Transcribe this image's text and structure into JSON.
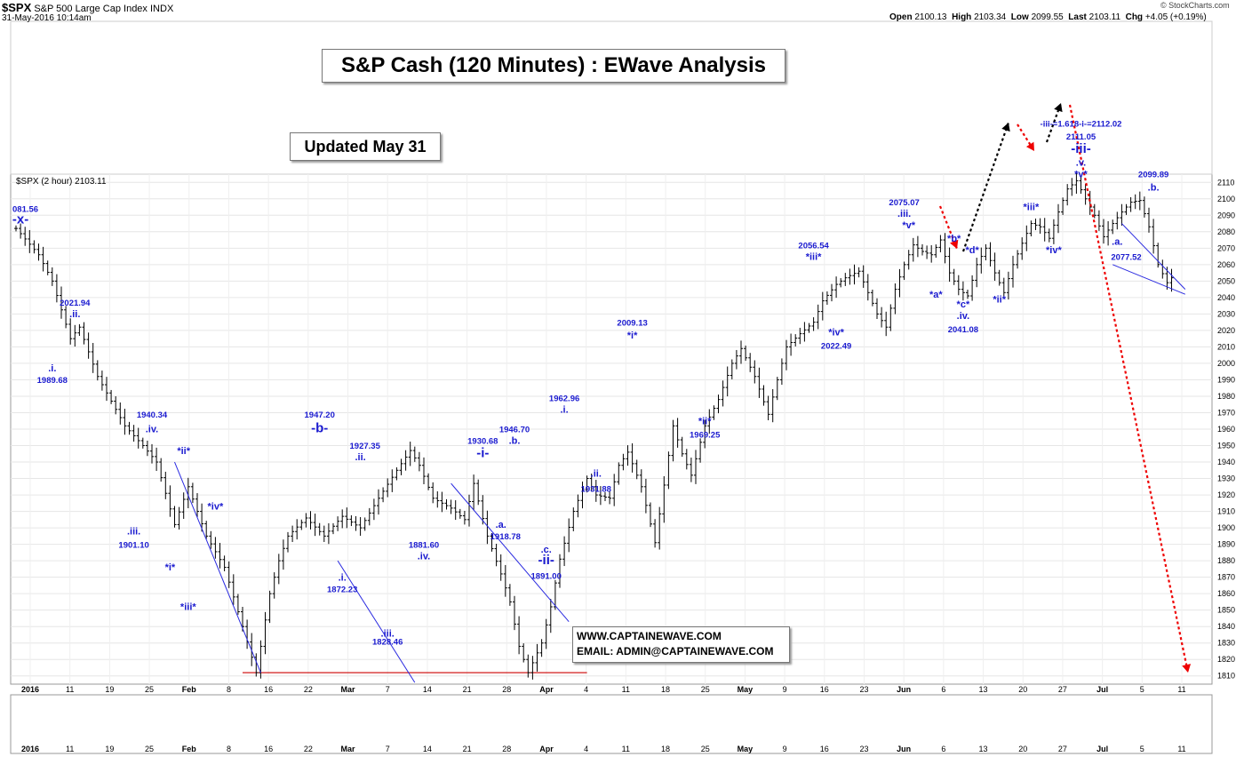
{
  "header": {
    "symbol": "$SPX",
    "name": "S&P 500 Large Cap Index",
    "exchange": "INDX",
    "datetime": "31-May-2016 10:14am",
    "open_label": "Open",
    "open": "2100.13",
    "high_label": "High",
    "high": "2103.34",
    "low_label": "Low",
    "low": "2099.55",
    "last_label": "Last",
    "last": "2103.11",
    "chg_label": "Chg",
    "chg": "+4.05 (+0.19%)",
    "source": "© StockCharts.com"
  },
  "title_box": "S&P Cash (120 Minutes) : EWave Analysis",
  "updated_box": "Updated May 31",
  "contact": {
    "website": "WWW.CAPTAINEWAVE.COM",
    "email": "EMAIL: ADMIN@CAPTAINEWAVE.COM"
  },
  "legend_label": "$SPX (2 hour) 2103.11",
  "chart_data": {
    "type": "line",
    "title": "S&P Cash (120 Minutes) : EWave Analysis",
    "ylim": [
      1805,
      2115
    ],
    "y_ticks": [
      1810,
      1820,
      1830,
      1840,
      1850,
      1860,
      1870,
      1880,
      1890,
      1900,
      1910,
      1920,
      1930,
      1940,
      1950,
      1960,
      1970,
      1980,
      1990,
      2000,
      2010,
      2020,
      2030,
      2040,
      2050,
      2060,
      2070,
      2080,
      2090,
      2100,
      2110
    ],
    "x_tick_labels": [
      "2016",
      "11",
      "19",
      "25",
      "Feb",
      "8",
      "16",
      "22",
      "Mar",
      "7",
      "14",
      "21",
      "28",
      "Apr",
      "4",
      "11",
      "18",
      "25",
      "May",
      "9",
      "16",
      "23",
      "Jun",
      "6",
      "13",
      "20",
      "27",
      "Jul",
      "5",
      "11"
    ],
    "bar_count": 256,
    "price_path": [
      [
        0,
        2082
      ],
      [
        5,
        2066
      ],
      [
        8,
        2050
      ],
      [
        12,
        2015
      ],
      [
        14,
        2022
      ],
      [
        18,
        1992
      ],
      [
        24,
        1962
      ],
      [
        28,
        1950
      ],
      [
        31,
        1940
      ],
      [
        35,
        1902
      ],
      [
        38,
        1925
      ],
      [
        42,
        1895
      ],
      [
        46,
        1876
      ],
      [
        50,
        1840
      ],
      [
        53,
        1812
      ],
      [
        56,
        1860
      ],
      [
        58,
        1880
      ],
      [
        60,
        1895
      ],
      [
        64,
        1906
      ],
      [
        68,
        1895
      ],
      [
        72,
        1907
      ],
      [
        76,
        1900
      ],
      [
        80,
        1918
      ],
      [
        84,
        1935
      ],
      [
        87,
        1947
      ],
      [
        89,
        1938
      ],
      [
        92,
        1918
      ],
      [
        96,
        1912
      ],
      [
        99,
        1905
      ],
      [
        101,
        1927
      ],
      [
        104,
        1895
      ],
      [
        107,
        1872
      ],
      [
        109,
        1855
      ],
      [
        111,
        1828
      ],
      [
        113,
        1812
      ],
      [
        116,
        1830
      ],
      [
        118,
        1852
      ],
      [
        120,
        1881
      ],
      [
        123,
        1910
      ],
      [
        126,
        1930
      ],
      [
        128,
        1920
      ],
      [
        131,
        1918
      ],
      [
        133,
        1938
      ],
      [
        135,
        1946
      ],
      [
        138,
        1925
      ],
      [
        141,
        1891
      ],
      [
        143,
        1926
      ],
      [
        145,
        1962
      ],
      [
        147,
        1945
      ],
      [
        149,
        1932
      ],
      [
        152,
        1962
      ],
      [
        155,
        1978
      ],
      [
        158,
        2000
      ],
      [
        160,
        2009
      ],
      [
        163,
        1992
      ],
      [
        166,
        1969
      ],
      [
        168,
        1990
      ],
      [
        170,
        2010
      ],
      [
        173,
        2018
      ],
      [
        176,
        2025
      ],
      [
        178,
        2038
      ],
      [
        181,
        2048
      ],
      [
        183,
        2052
      ],
      [
        186,
        2056
      ],
      [
        188,
        2043
      ],
      [
        190,
        2030
      ],
      [
        192,
        2022
      ],
      [
        194,
        2045
      ],
      [
        196,
        2060
      ],
      [
        198,
        2072
      ],
      [
        200,
        2068
      ],
      [
        202,
        2066
      ],
      [
        204,
        2075
      ],
      [
        206,
        2055
      ],
      [
        208,
        2045
      ],
      [
        210,
        2041
      ],
      [
        212,
        2060
      ],
      [
        214,
        2070
      ],
      [
        216,
        2055
      ],
      [
        218,
        2043
      ],
      [
        220,
        2060
      ],
      [
        222,
        2073
      ],
      [
        224,
        2085
      ],
      [
        226,
        2083
      ],
      [
        228,
        2076
      ],
      [
        230,
        2092
      ],
      [
        232,
        2106
      ],
      [
        234,
        2111
      ],
      [
        236,
        2100
      ],
      [
        238,
        2090
      ],
      [
        240,
        2077
      ],
      [
        242,
        2085
      ],
      [
        244,
        2092
      ],
      [
        246,
        2098
      ],
      [
        248,
        2099
      ],
      [
        250,
        2083
      ],
      [
        252,
        2060
      ],
      [
        254,
        2049
      ],
      [
        256,
        2055
      ]
    ],
    "series": [
      {
        "name": "$SPX (2 hour)",
        "values": "OHLC bars — see price_path"
      }
    ],
    "annotations": [
      {
        "label": "081.56",
        "bar": 0,
        "y": 2092,
        "kind": "price"
      },
      {
        "label": "-x-",
        "bar": 1,
        "y": 2085,
        "kind": "wave2"
      },
      {
        "label": "2021.94",
        "bar": 13,
        "y": 2035,
        "kind": "price"
      },
      {
        "label": ".ii.",
        "bar": 13,
        "y": 2028,
        "kind": "wave"
      },
      {
        "label": ".i.",
        "bar": 8,
        "y": 1995,
        "kind": "wave"
      },
      {
        "label": "1989.68",
        "bar": 8,
        "y": 1988,
        "kind": "price"
      },
      {
        "label": "1940.34",
        "bar": 30,
        "y": 1967,
        "kind": "price"
      },
      {
        "label": ".iv.",
        "bar": 30,
        "y": 1958,
        "kind": "wave"
      },
      {
        "label": "*ii*",
        "bar": 37,
        "y": 1945,
        "kind": "wave"
      },
      {
        "label": "*iv*",
        "bar": 44,
        "y": 1911,
        "kind": "wave"
      },
      {
        "label": ".iii.",
        "bar": 26,
        "y": 1896,
        "kind": "wave"
      },
      {
        "label": "1901.10",
        "bar": 26,
        "y": 1888,
        "kind": "price"
      },
      {
        "label": "*i*",
        "bar": 34,
        "y": 1874,
        "kind": "wave"
      },
      {
        "label": "*iii*",
        "bar": 38,
        "y": 1850,
        "kind": "wave"
      },
      {
        "label": "1947.20",
        "bar": 67,
        "y": 1967,
        "kind": "price"
      },
      {
        "label": "-b-",
        "bar": 67,
        "y": 1958,
        "kind": "wave2"
      },
      {
        "label": "1927.35",
        "bar": 77,
        "y": 1948,
        "kind": "price"
      },
      {
        "label": ".ii.",
        "bar": 76,
        "y": 1941,
        "kind": "wave"
      },
      {
        "label": "1881.60",
        "bar": 90,
        "y": 1888,
        "kind": "price"
      },
      {
        "label": ".iv.",
        "bar": 90,
        "y": 1881,
        "kind": "wave"
      },
      {
        "label": ".i.",
        "bar": 72,
        "y": 1868,
        "kind": "wave"
      },
      {
        "label": "1872.23",
        "bar": 72,
        "y": 1861,
        "kind": "price"
      },
      {
        "label": ".iii.",
        "bar": 82,
        "y": 1834,
        "kind": "wave"
      },
      {
        "label": "1828.46",
        "bar": 82,
        "y": 1829,
        "kind": "price"
      },
      {
        "label": "1930.68",
        "bar": 103,
        "y": 1951,
        "kind": "price"
      },
      {
        "label": "-i-",
        "bar": 103,
        "y": 1943,
        "kind": "wave2"
      },
      {
        "label": "1946.70",
        "bar": 110,
        "y": 1958,
        "kind": "price"
      },
      {
        "label": ".b.",
        "bar": 110,
        "y": 1951,
        "kind": "wave"
      },
      {
        "label": ".a.",
        "bar": 107,
        "y": 1900,
        "kind": "wave"
      },
      {
        "label": "1918.78",
        "bar": 108,
        "y": 1893,
        "kind": "price"
      },
      {
        "label": ".c.",
        "bar": 117,
        "y": 1885,
        "kind": "wave"
      },
      {
        "label": "-ii-",
        "bar": 117,
        "y": 1878,
        "kind": "wave2"
      },
      {
        "label": "1891.00",
        "bar": 117,
        "y": 1869,
        "kind": "price"
      },
      {
        "label": "1962.96",
        "bar": 121,
        "y": 1977,
        "kind": "price"
      },
      {
        "label": ".i.",
        "bar": 121,
        "y": 1970,
        "kind": "wave"
      },
      {
        "label": ".ii.",
        "bar": 128,
        "y": 1931,
        "kind": "wave"
      },
      {
        "label": "1931.88",
        "bar": 128,
        "y": 1922,
        "kind": "price"
      },
      {
        "label": "2009.13",
        "bar": 136,
        "y": 2023,
        "kind": "price"
      },
      {
        "label": "*i*",
        "bar": 136,
        "y": 2015,
        "kind": "wave"
      },
      {
        "label": "*ii*",
        "bar": 152,
        "y": 1963,
        "kind": "wave"
      },
      {
        "label": "1969.25",
        "bar": 152,
        "y": 1955,
        "kind": "price"
      },
      {
        "label": "2056.54",
        "bar": 176,
        "y": 2070,
        "kind": "price"
      },
      {
        "label": "*iii*",
        "bar": 176,
        "y": 2063,
        "kind": "wave"
      },
      {
        "label": "*iv*",
        "bar": 181,
        "y": 2017,
        "kind": "wave"
      },
      {
        "label": "2022.49",
        "bar": 181,
        "y": 2009,
        "kind": "price"
      },
      {
        "label": "2075.07",
        "bar": 196,
        "y": 2096,
        "kind": "price"
      },
      {
        "label": ".iii.",
        "bar": 196,
        "y": 2089,
        "kind": "wave"
      },
      {
        "label": "*v*",
        "bar": 197,
        "y": 2082,
        "kind": "wave"
      },
      {
        "label": "*b*",
        "bar": 207,
        "y": 2074,
        "kind": "wave"
      },
      {
        "label": "*d*",
        "bar": 211,
        "y": 2067,
        "kind": "wave"
      },
      {
        "label": "*a*",
        "bar": 203,
        "y": 2040,
        "kind": "wave"
      },
      {
        "label": "*ii*",
        "bar": 217,
        "y": 2037,
        "kind": "wave"
      },
      {
        "label": "*c*",
        "bar": 209,
        "y": 2034,
        "kind": "wave"
      },
      {
        "label": ".iv.",
        "bar": 209,
        "y": 2027,
        "kind": "wave"
      },
      {
        "label": "2041.08",
        "bar": 209,
        "y": 2019,
        "kind": "price"
      },
      {
        "label": "*iii*",
        "bar": 224,
        "y": 2093,
        "kind": "wave"
      },
      {
        "label": "*iv*",
        "bar": 229,
        "y": 2067,
        "kind": "wave"
      },
      {
        "label": "-iii-=1.618-i-=2112.02",
        "bar": 235,
        "y": 2144,
        "kind": "price"
      },
      {
        "label": "2111.05",
        "bar": 235,
        "y": 2136,
        "kind": "price"
      },
      {
        "label": "-iii-",
        "bar": 235,
        "y": 2128,
        "kind": "wave2"
      },
      {
        "label": ".v.",
        "bar": 235,
        "y": 2120,
        "kind": "wave"
      },
      {
        "label": "*v*",
        "bar": 235,
        "y": 2113,
        "kind": "wave"
      },
      {
        "label": "2099.89",
        "bar": 251,
        "y": 2113,
        "kind": "price"
      },
      {
        "label": ".b.",
        "bar": 251,
        "y": 2105,
        "kind": "wave"
      },
      {
        "label": ".a.",
        "bar": 243,
        "y": 2072,
        "kind": "wave"
      },
      {
        "label": "2077.52",
        "bar": 245,
        "y": 2063,
        "kind": "price"
      }
    ]
  }
}
